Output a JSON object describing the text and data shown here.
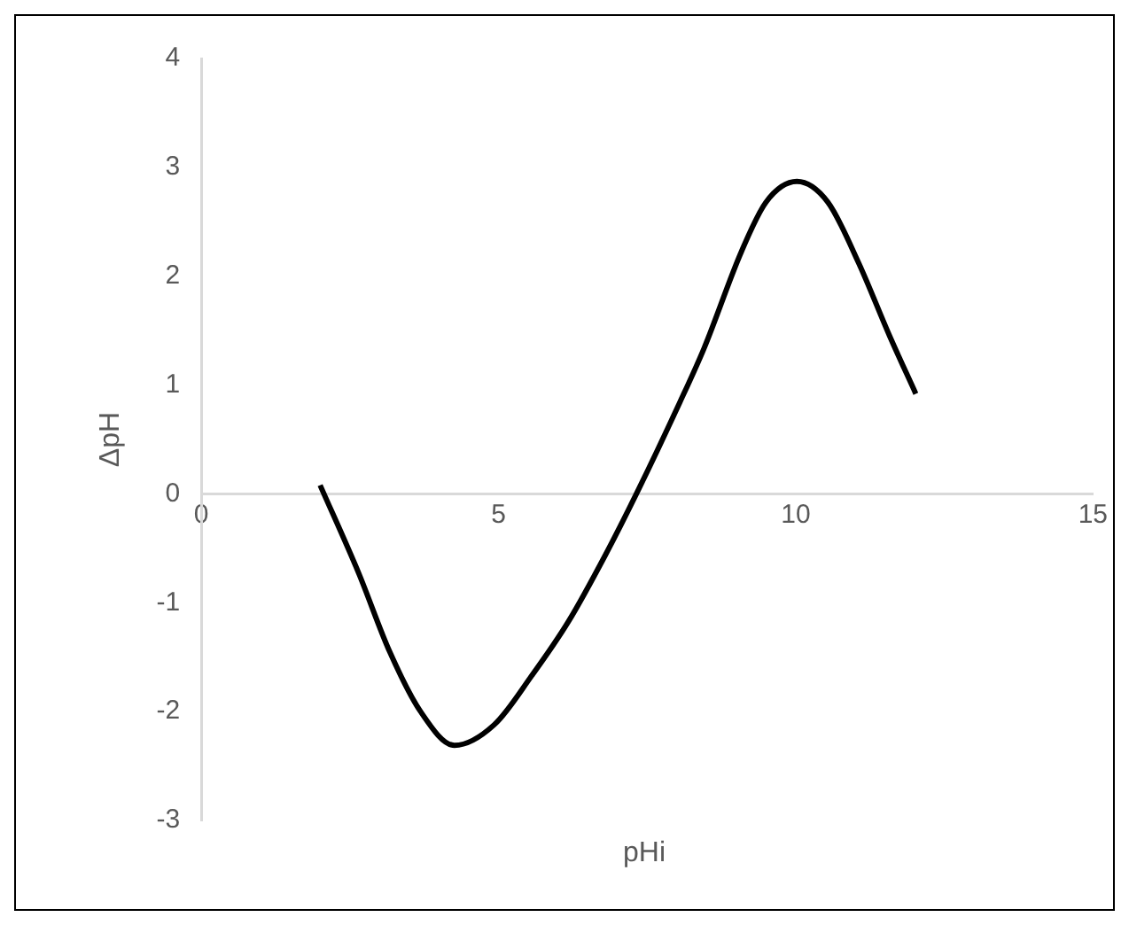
{
  "chart_data": {
    "type": "line",
    "xlabel": "pHi",
    "ylabel": "ΔpH",
    "xlim": [
      0,
      15
    ],
    "ylim": [
      -3,
      4
    ],
    "xticks": [
      0,
      5,
      10,
      15
    ],
    "yticks": [
      -3,
      -2,
      -1,
      0,
      1,
      2,
      3,
      4
    ],
    "grid": false,
    "marker": "none",
    "series": [
      {
        "color": "#000000",
        "x": [
          2.0,
          2.65,
          3.17,
          3.69,
          4.26,
          4.93,
          5.56,
          6.18,
          6.8,
          7.32,
          8.05,
          8.46,
          9.09,
          9.5,
          10.02,
          10.54,
          11.06,
          11.58,
          12.02
        ],
        "values": [
          0.08,
          -0.73,
          -1.45,
          -2.0,
          -2.31,
          -2.12,
          -1.67,
          -1.17,
          -0.56,
          0,
          0.84,
          1.34,
          2.23,
          2.68,
          2.87,
          2.68,
          2.12,
          1.45,
          0.92
        ]
      }
    ]
  }
}
